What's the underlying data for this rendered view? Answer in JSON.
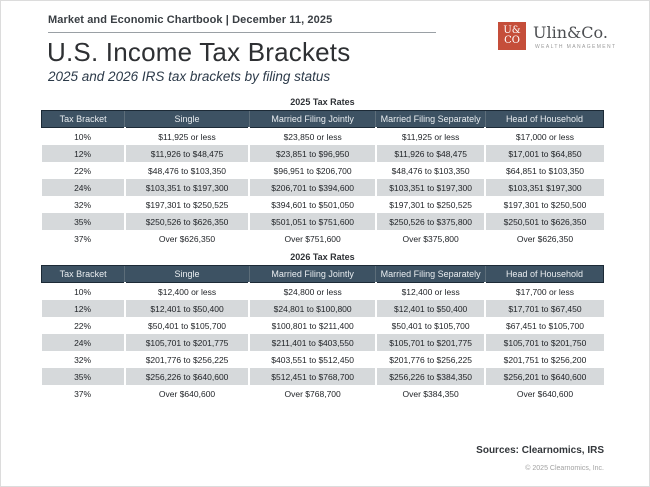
{
  "header": {
    "chartbook_label": "Market and Economic Chartbook | December 11, 2025",
    "title": "U.S. Income Tax Brackets",
    "subtitle": "2025 and 2026 IRS tax brackets by filing status"
  },
  "logo": {
    "mark_line1": "U&",
    "mark_line2": "CO",
    "name": "Ulin&Co.",
    "tagline": "WEALTH MANAGEMENT",
    "mark_color": "#c54e3a"
  },
  "tables": [
    {
      "title": "2025 Tax Rates",
      "columns": [
        "Tax Bracket",
        "Single",
        "Married Filing Jointly",
        "Married Filing Separately",
        "Head of Household"
      ],
      "rows": [
        [
          "10%",
          "$11,925 or less",
          "$23,850 or less",
          "$11,925 or less",
          "$17,000 or less"
        ],
        [
          "12%",
          "$11,926 to $48,475",
          "$23,851 to $96,950",
          "$11,926 to $48,475",
          "$17,001 to $64,850"
        ],
        [
          "22%",
          "$48,476 to $103,350",
          "$96,951 to $206,700",
          "$48,476 to $103,350",
          "$64,851 to $103,350"
        ],
        [
          "24%",
          "$103,351 to $197,300",
          "$206,701 to $394,600",
          "$103,351 to $197,300",
          "$103,351 $197,300"
        ],
        [
          "32%",
          "$197,301 to $250,525",
          "$394,601 to $501,050",
          "$197,301 to $250,525",
          "$197,301 to $250,500"
        ],
        [
          "35%",
          "$250,526 to $626,350",
          "$501,051 to $751,600",
          "$250,526 to $375,800",
          "$250,501 to $626,350"
        ],
        [
          "37%",
          "Over $626,350",
          "Over $751,600",
          "Over $375,800",
          "Over $626,350"
        ]
      ]
    },
    {
      "title": "2026 Tax Rates",
      "columns": [
        "Tax Bracket",
        "Single",
        "Married Filing Jointly",
        "Married Filing Separately",
        "Head of Household"
      ],
      "rows": [
        [
          "10%",
          "$12,400 or less",
          "$24,800 or less",
          "$12,400 or less",
          "$17,700 or less"
        ],
        [
          "12%",
          "$12,401 to $50,400",
          "$24,801 to $100,800",
          "$12,401 to $50,400",
          "$17,701 to $67,450"
        ],
        [
          "22%",
          "$50,401 to $105,700",
          "$100,801 to $211,400",
          "$50,401 to $105,700",
          "$67,451 to $105,700"
        ],
        [
          "24%",
          "$105,701 to $201,775",
          "$211,401 to $403,550",
          "$105,701 to $201,775",
          "$105,701 to $201,750"
        ],
        [
          "32%",
          "$201,776 to $256,225",
          "$403,551 to $512,450",
          "$201,776 to $256,225",
          "$201,751 to $256,200"
        ],
        [
          "35%",
          "$256,226 to $640,600",
          "$512,451 to $768,700",
          "$256,226 to $384,350",
          "$256,201 to $640,600"
        ],
        [
          "37%",
          "Over $640,600",
          "Over $768,700",
          "Over $384,350",
          "Over $640,600"
        ]
      ]
    }
  ],
  "footer": {
    "sources": "Sources: Clearnomics, IRS",
    "copyright": "© 2025 Clearnomics, Inc."
  },
  "colors": {
    "table_header_bg": "#3d5263",
    "table_header_border": "#1c2a36",
    "row_alt_bg": "#d6d9db",
    "accent_red": "#c54e3a"
  }
}
